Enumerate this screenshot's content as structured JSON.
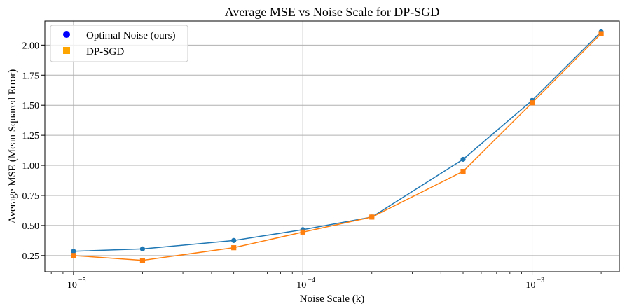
{
  "chart_data": {
    "type": "line",
    "title": "Average MSE vs Noise Scale for DP-SGD",
    "xlabel": "Noise Scale (k)",
    "ylabel": "Average MSE (Mean Squared Error)",
    "x_scale": "log",
    "xlim": [
      7.5e-06,
      0.0024
    ],
    "ylim": [
      0.115,
      2.2
    ],
    "grid": true,
    "legend_position": "top-left",
    "x_ticks": [
      {
        "value": 1e-05,
        "base": "10",
        "exp": "−5"
      },
      {
        "value": 0.0001,
        "base": "10",
        "exp": "−4"
      },
      {
        "value": 0.001,
        "base": "10",
        "exp": "−3"
      }
    ],
    "y_ticks": [
      "0.25",
      "0.50",
      "0.75",
      "1.00",
      "1.25",
      "1.50",
      "1.75",
      "2.00"
    ],
    "x": [
      1e-05,
      2e-05,
      5e-05,
      0.0001,
      0.0002,
      0.0005,
      0.001,
      0.002
    ],
    "series": [
      {
        "name": "Optimal Noise (ours)",
        "marker": "circle",
        "color": "#1f77b4",
        "legend_color": "#0000ff",
        "values": [
          0.285,
          0.305,
          0.375,
          0.465,
          0.57,
          1.05,
          1.54,
          2.11
        ]
      },
      {
        "name": "DP-SGD",
        "marker": "square",
        "color": "#ff7f0e",
        "legend_color": "#ffa500",
        "values": [
          0.25,
          0.21,
          0.315,
          0.445,
          0.57,
          0.95,
          1.52,
          2.095
        ]
      }
    ]
  }
}
